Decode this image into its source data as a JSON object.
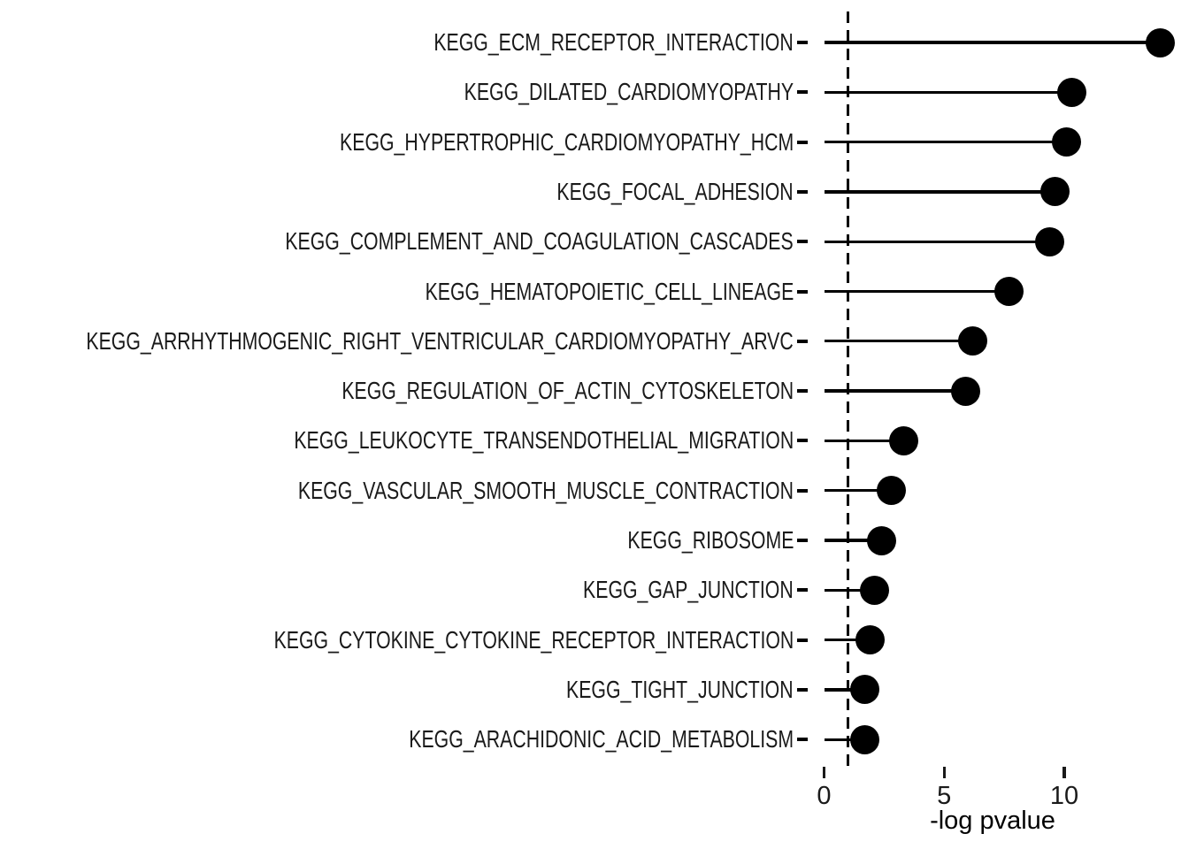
{
  "chart_data": {
    "type": "bar",
    "style": "lollipop",
    "orientation": "horizontal",
    "title": "",
    "xlabel": "-log pvalue",
    "ylabel": "",
    "xlim": [
      -0.75,
      14.9
    ],
    "xticks": [
      0,
      5,
      10
    ],
    "grid": false,
    "legend": "none",
    "threshold_line": {
      "x": 1.0,
      "style": "dashed",
      "color": "#000000"
    },
    "point_color": "#000000",
    "stem_color": "#000000",
    "background_color": "#ffffff",
    "categories": [
      "KEGG_ECM_RECEPTOR_INTERACTION",
      "KEGG_DILATED_CARDIOMYOPATHY",
      "KEGG_HYPERTROPHIC_CARDIOMYOPATHY_HCM",
      "KEGG_FOCAL_ADHESION",
      "KEGG_COMPLEMENT_AND_COAGULATION_CASCADES",
      "KEGG_HEMATOPOIETIC_CELL_LINEAGE",
      "KEGG_ARRHYTHMOGENIC_RIGHT_VENTRICULAR_CARDIOMYOPATHY_ARVC",
      "KEGG_REGULATION_OF_ACTIN_CYTOSKELETON",
      "KEGG_LEUKOCYTE_TRANSENDOTHELIAL_MIGRATION",
      "KEGG_VASCULAR_SMOOTH_MUSCLE_CONTRACTION",
      "KEGG_RIBOSOME",
      "KEGG_GAP_JUNCTION",
      "KEGG_CYTOKINE_CYTOKINE_RECEPTOR_INTERACTION",
      "KEGG_TIGHT_JUNCTION",
      "KEGG_ARACHIDONIC_ACID_METABOLISM"
    ],
    "values": [
      14.0,
      10.3,
      10.1,
      9.6,
      9.4,
      7.7,
      6.2,
      5.9,
      3.3,
      2.8,
      2.4,
      2.1,
      1.9,
      1.7,
      1.7
    ]
  }
}
